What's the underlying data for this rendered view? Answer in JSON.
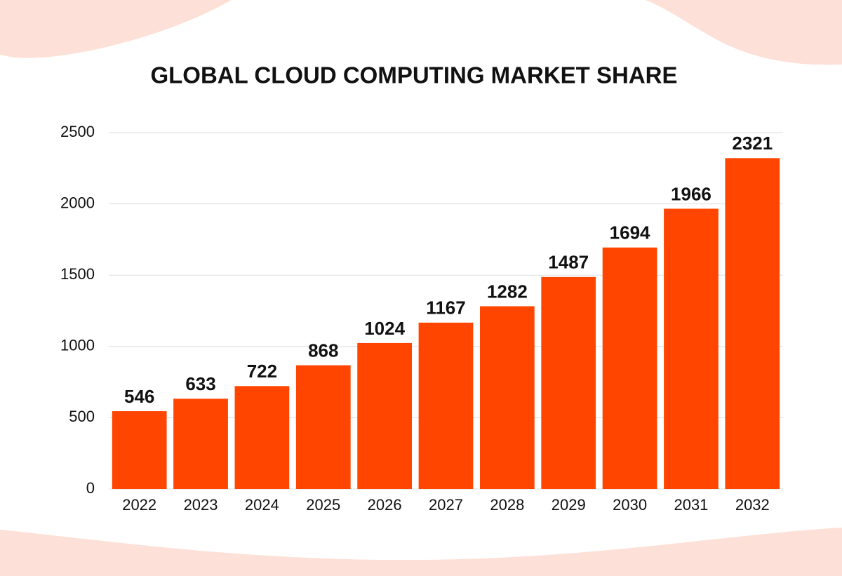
{
  "chart_data": {
    "type": "bar",
    "title": "GLOBAL CLOUD COMPUTING MARKET SHARE",
    "categories": [
      "2022",
      "2023",
      "2024",
      "2025",
      "2026",
      "2027",
      "2028",
      "2029",
      "2030",
      "2031",
      "2032"
    ],
    "values": [
      546,
      633,
      722,
      868,
      1024,
      1167,
      1282,
      1487,
      1694,
      1966,
      2321
    ],
    "color": "#ff4500",
    "ylim": [
      0,
      2500
    ],
    "yticks": [
      0,
      500,
      1000,
      1500,
      2000,
      2500
    ],
    "grid": true
  }
}
